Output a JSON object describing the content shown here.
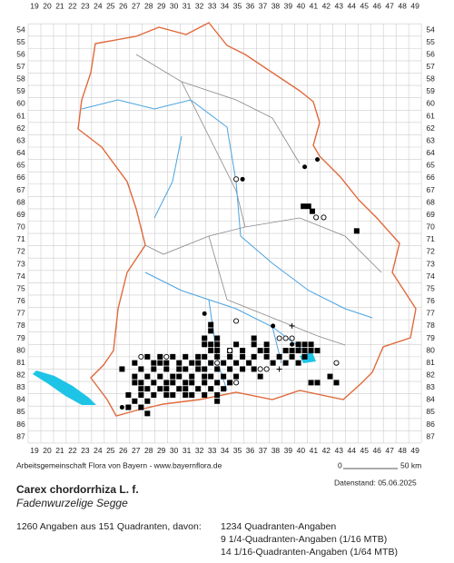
{
  "grid": {
    "columns": [
      19,
      20,
      21,
      22,
      23,
      24,
      25,
      26,
      27,
      28,
      29,
      30,
      31,
      32,
      33,
      34,
      35,
      36,
      37,
      38,
      39,
      40,
      41,
      42,
      43,
      44,
      45,
      46,
      47,
      48,
      49
    ],
    "rows": [
      54,
      55,
      56,
      57,
      58,
      59,
      60,
      61,
      62,
      63,
      64,
      65,
      66,
      67,
      68,
      69,
      70,
      71,
      72,
      73,
      74,
      75,
      76,
      77,
      78,
      79,
      80,
      81,
      82,
      83,
      84,
      85,
      86,
      87
    ]
  },
  "records": {
    "squares": [
      [
        40.2,
        68.3
      ],
      [
        40.6,
        68.3
      ],
      [
        40.9,
        68.7
      ],
      [
        44.4,
        70.3
      ],
      [
        32.9,
        77.9
      ],
      [
        32.9,
        78.4
      ],
      [
        32.4,
        79.0
      ],
      [
        33.4,
        79.0
      ],
      [
        36.3,
        79.0
      ],
      [
        32.4,
        79.5
      ],
      [
        32.9,
        79.5
      ],
      [
        33.4,
        79.5
      ],
      [
        34.9,
        79.5
      ],
      [
        36.3,
        79.5
      ],
      [
        37.3,
        79.5
      ],
      [
        39.8,
        79.5
      ],
      [
        40.3,
        79.5
      ],
      [
        40.8,
        79.5
      ],
      [
        32.9,
        80.0
      ],
      [
        33.4,
        80.0
      ],
      [
        34.4,
        80.0
      ],
      [
        35.4,
        80.0
      ],
      [
        36.8,
        80.0
      ],
      [
        37.3,
        80.0
      ],
      [
        38.8,
        80.0
      ],
      [
        39.3,
        80.0
      ],
      [
        39.8,
        80.0
      ],
      [
        40.3,
        80.0
      ],
      [
        40.8,
        80.0
      ],
      [
        41.3,
        80.0
      ],
      [
        27.9,
        80.5
      ],
      [
        28.9,
        80.5
      ],
      [
        29.9,
        80.5
      ],
      [
        30.9,
        80.5
      ],
      [
        31.9,
        80.5
      ],
      [
        32.4,
        80.5
      ],
      [
        33.4,
        80.5
      ],
      [
        34.4,
        80.5
      ],
      [
        35.4,
        80.5
      ],
      [
        36.3,
        80.5
      ],
      [
        37.3,
        80.5
      ],
      [
        38.3,
        80.5
      ],
      [
        39.3,
        80.5
      ],
      [
        40.3,
        80.5
      ],
      [
        26.9,
        81.0
      ],
      [
        28.4,
        81.0
      ],
      [
        28.9,
        81.0
      ],
      [
        29.4,
        81.0
      ],
      [
        30.4,
        81.0
      ],
      [
        31.4,
        81.0
      ],
      [
        31.9,
        81.0
      ],
      [
        32.9,
        81.0
      ],
      [
        33.9,
        81.0
      ],
      [
        34.9,
        81.0
      ],
      [
        35.9,
        81.0
      ],
      [
        37.8,
        81.0
      ],
      [
        38.8,
        81.0
      ],
      [
        39.8,
        81.0
      ],
      [
        25.9,
        81.5
      ],
      [
        27.4,
        81.5
      ],
      [
        28.4,
        81.5
      ],
      [
        29.4,
        81.5
      ],
      [
        30.4,
        81.5
      ],
      [
        30.9,
        81.5
      ],
      [
        31.9,
        81.5
      ],
      [
        32.4,
        81.5
      ],
      [
        33.4,
        81.5
      ],
      [
        34.4,
        81.5
      ],
      [
        35.4,
        81.5
      ],
      [
        36.3,
        81.5
      ],
      [
        26.9,
        82.1
      ],
      [
        27.9,
        82.1
      ],
      [
        28.9,
        82.1
      ],
      [
        29.9,
        82.1
      ],
      [
        30.4,
        82.1
      ],
      [
        31.4,
        82.1
      ],
      [
        32.4,
        82.1
      ],
      [
        32.9,
        82.1
      ],
      [
        33.9,
        82.1
      ],
      [
        34.9,
        82.1
      ],
      [
        36.8,
        82.1
      ],
      [
        42.3,
        82.1
      ],
      [
        26.9,
        82.6
      ],
      [
        27.4,
        82.6
      ],
      [
        28.4,
        82.6
      ],
      [
        29.4,
        82.6
      ],
      [
        29.9,
        82.6
      ],
      [
        30.9,
        82.6
      ],
      [
        31.4,
        82.6
      ],
      [
        32.4,
        82.6
      ],
      [
        33.4,
        82.6
      ],
      [
        34.4,
        82.6
      ],
      [
        40.8,
        82.6
      ],
      [
        41.3,
        82.6
      ],
      [
        42.8,
        82.6
      ],
      [
        27.4,
        83.1
      ],
      [
        27.9,
        83.1
      ],
      [
        28.9,
        83.1
      ],
      [
        29.4,
        83.1
      ],
      [
        30.4,
        83.1
      ],
      [
        30.9,
        83.1
      ],
      [
        31.9,
        83.1
      ],
      [
        32.9,
        83.1
      ],
      [
        33.9,
        83.1
      ],
      [
        26.4,
        83.6
      ],
      [
        27.4,
        83.6
      ],
      [
        28.4,
        83.6
      ],
      [
        29.4,
        83.6
      ],
      [
        29.9,
        83.6
      ],
      [
        30.9,
        83.6
      ],
      [
        31.4,
        83.6
      ],
      [
        32.4,
        83.6
      ],
      [
        33.4,
        83.6
      ],
      [
        26.9,
        84.1
      ],
      [
        27.9,
        84.1
      ],
      [
        33.4,
        84.1
      ],
      [
        26.4,
        84.6
      ],
      [
        27.4,
        84.6
      ],
      [
        27.9,
        85.1
      ]
    ],
    "circles": [
      [
        34.9,
        66.1
      ],
      [
        41.2,
        69.2
      ],
      [
        41.8,
        69.2
      ],
      [
        34.9,
        77.6
      ],
      [
        38.3,
        79.0
      ],
      [
        38.8,
        79.0
      ],
      [
        39.3,
        79.0
      ],
      [
        34.4,
        80.0
      ],
      [
        27.4,
        80.5
      ],
      [
        29.4,
        80.5
      ],
      [
        33.4,
        81.0
      ],
      [
        42.8,
        81.0
      ],
      [
        36.8,
        81.5
      ],
      [
        37.3,
        81.5
      ],
      [
        34.9,
        82.6
      ]
    ],
    "dots": [
      [
        41.3,
        64.5
      ],
      [
        40.3,
        65.1
      ],
      [
        35.4,
        66.1
      ],
      [
        32.4,
        77.0
      ],
      [
        37.8,
        78.0
      ],
      [
        39.3,
        79.5
      ],
      [
        25.9,
        84.6
      ]
    ],
    "crosses": [
      [
        39.3,
        78.0
      ],
      [
        32.4,
        79.0
      ],
      [
        38.3,
        81.5
      ]
    ]
  },
  "footer": {
    "credit": "Arbeitsgemeinschaft Flora von Bayern - www.bayernflora.de",
    "scale_start": "0",
    "scale_end": "50 km",
    "date": "Datenstand: 05.06.2025"
  },
  "species": {
    "name": "Carex chordorrhiza L. f.",
    "common_name": "Fadenwurzelige Segge"
  },
  "summary": {
    "total": "1260 Angaben aus 151 Quadranten, davon:",
    "lines": [
      "1234 Quadranten-Angaben",
      "9 1/4-Quadranten-Angaben (1/16 MTB)",
      "14 1/16-Quadranten-Angaben (1/64 MTB)"
    ]
  }
}
